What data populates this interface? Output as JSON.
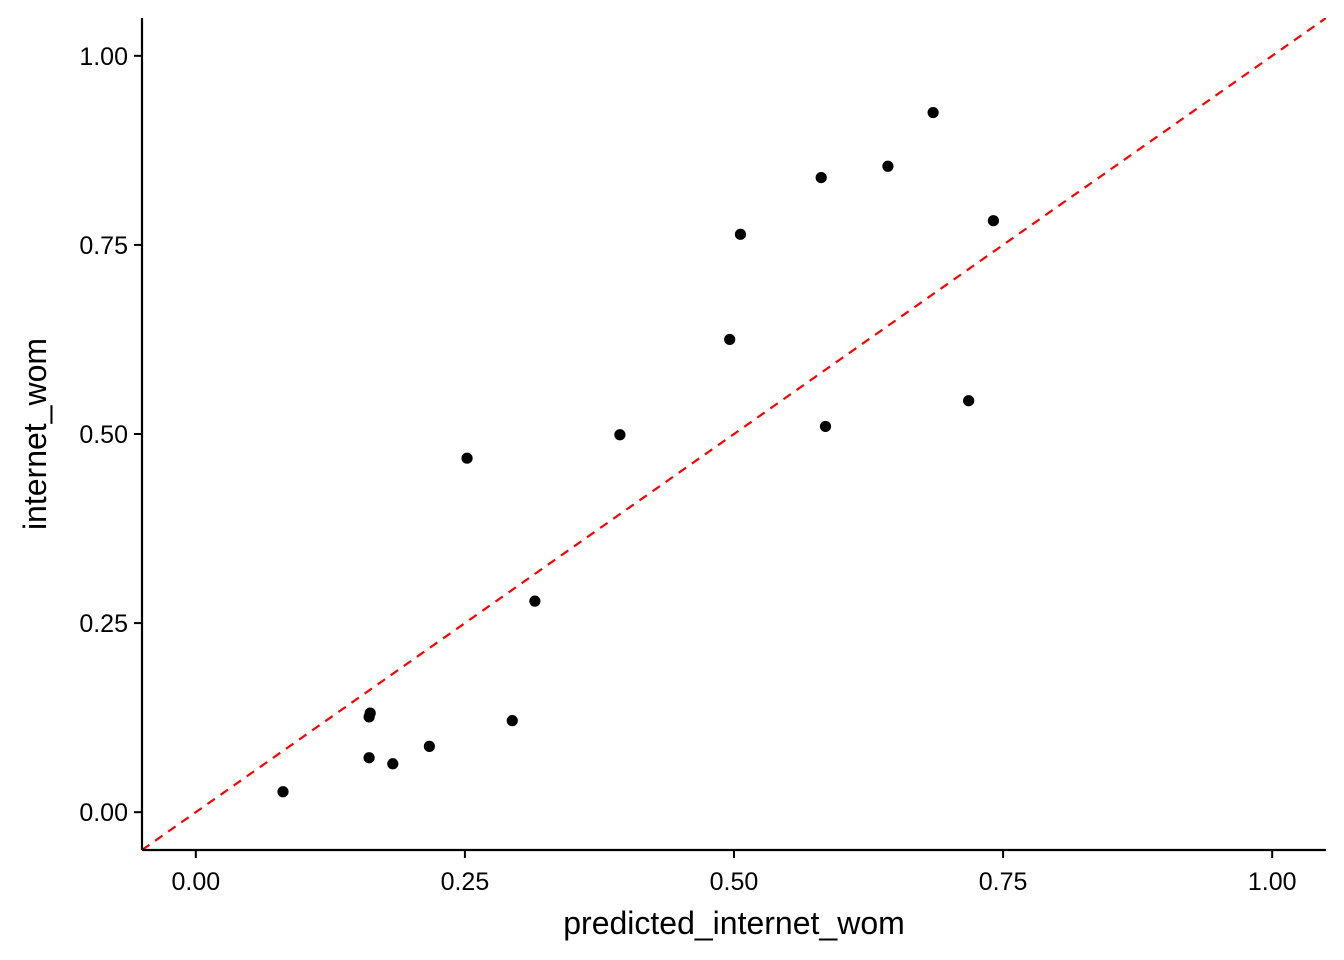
{
  "chart_data": {
    "type": "scatter",
    "title": "",
    "xlabel": "predicted_internet_wom",
    "ylabel": "internet_wom",
    "xlim": [
      -0.05,
      1.05
    ],
    "ylim": [
      -0.05,
      1.05
    ],
    "x_ticks": [
      "0.00",
      "0.25",
      "0.50",
      "0.75",
      "1.00"
    ],
    "y_ticks": [
      "0.00",
      "0.25",
      "0.50",
      "0.75",
      "1.00"
    ],
    "grid": false,
    "reference_line": {
      "slope": 1,
      "intercept": 0,
      "style": "dashed",
      "color": "#ff0000"
    },
    "point_color": "#000000",
    "points": [
      {
        "x": 0.081,
        "y": 0.027
      },
      {
        "x": 0.161,
        "y": 0.072
      },
      {
        "x": 0.161,
        "y": 0.126
      },
      {
        "x": 0.162,
        "y": 0.131
      },
      {
        "x": 0.183,
        "y": 0.064
      },
      {
        "x": 0.217,
        "y": 0.087
      },
      {
        "x": 0.252,
        "y": 0.468
      },
      {
        "x": 0.294,
        "y": 0.121
      },
      {
        "x": 0.315,
        "y": 0.279
      },
      {
        "x": 0.394,
        "y": 0.499
      },
      {
        "x": 0.496,
        "y": 0.625
      },
      {
        "x": 0.506,
        "y": 0.764
      },
      {
        "x": 0.581,
        "y": 0.839
      },
      {
        "x": 0.585,
        "y": 0.51
      },
      {
        "x": 0.643,
        "y": 0.854
      },
      {
        "x": 0.685,
        "y": 0.925
      },
      {
        "x": 0.718,
        "y": 0.544
      },
      {
        "x": 0.741,
        "y": 0.782
      }
    ]
  }
}
